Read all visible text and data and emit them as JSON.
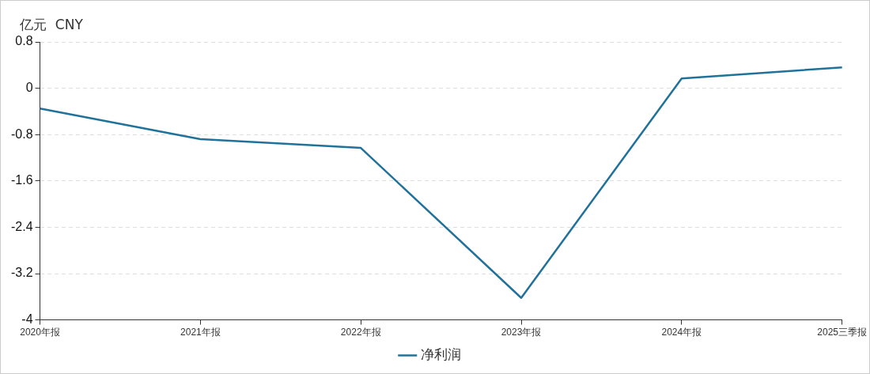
{
  "chart_data": {
    "type": "line",
    "ylabel": "亿元  CNY",
    "categories": [
      "2020年报",
      "2021年报",
      "2022年报",
      "2023年报",
      "2024年报",
      "2025三季报"
    ],
    "series": [
      {
        "name": "净利润",
        "color": "#21729b",
        "values": [
          -0.35,
          -0.88,
          -1.03,
          -3.62,
          0.17,
          0.36
        ]
      }
    ],
    "ylim": [
      -4,
      0.8
    ],
    "yticks": [
      0.8,
      0,
      -0.8,
      -1.6,
      -2.4,
      -3.2,
      -4
    ],
    "grid": "y",
    "legend": "bottom",
    "marker": "none",
    "line_style": "solid"
  }
}
